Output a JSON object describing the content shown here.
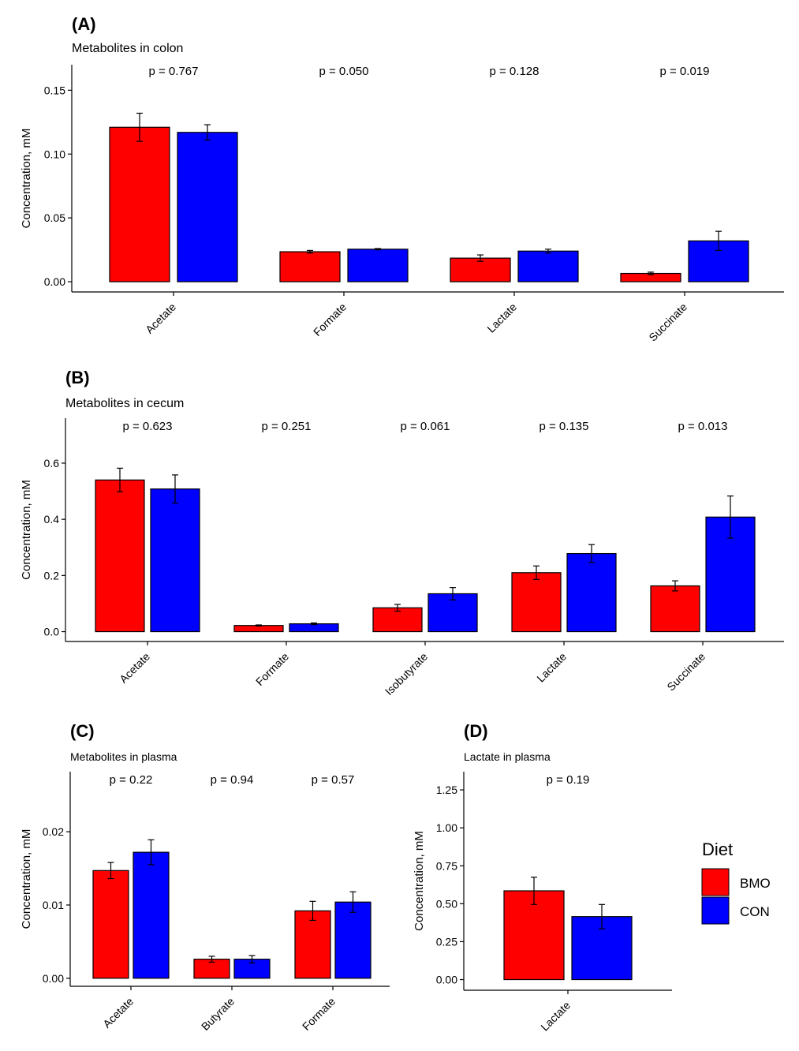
{
  "legend": {
    "title": "Diet",
    "items": [
      {
        "label": "BMO",
        "color": "#ff0000"
      },
      {
        "label": "CON",
        "color": "#0000ff"
      }
    ]
  },
  "chart_data": [
    {
      "id": "A",
      "type": "bar",
      "panel_label": "(A)",
      "title": "Metabolites in colon",
      "ylabel": "Concentration, mM",
      "xlabel": "",
      "ylim": [
        -0.008,
        0.17
      ],
      "yticks": [
        0.0,
        0.05,
        0.1,
        0.15
      ],
      "ytick_labels": [
        "0.00",
        "0.05",
        "0.10",
        "0.15"
      ],
      "categories": [
        "Acetate",
        "Formate",
        "Lactate",
        "Succinate"
      ],
      "pvalues": [
        "p = 0.767",
        "p = 0.050",
        "p = 0.128",
        "p = 0.019"
      ],
      "series": [
        {
          "name": "BMO",
          "color": "#ff0000",
          "values": [
            0.121,
            0.0235,
            0.0185,
            0.0065
          ],
          "errors": [
            0.011,
            0.001,
            0.0025,
            0.001
          ]
        },
        {
          "name": "CON",
          "color": "#0000ff",
          "values": [
            0.117,
            0.0255,
            0.024,
            0.032
          ],
          "errors": [
            0.006,
            0.0005,
            0.0015,
            0.0075
          ]
        }
      ]
    },
    {
      "id": "B",
      "type": "bar",
      "panel_label": "(B)",
      "title": "Metabolites in cecum",
      "ylabel": "Concentration, mM",
      "xlabel": "",
      "ylim": [
        -0.035,
        0.76
      ],
      "yticks": [
        0.0,
        0.2,
        0.4,
        0.6
      ],
      "ytick_labels": [
        "0.0",
        "0.2",
        "0.4",
        "0.6"
      ],
      "categories": [
        "Acetate",
        "Formate",
        "Isobutyrate",
        "Lactate",
        "Succinate"
      ],
      "pvalues": [
        "p = 0.623",
        "p = 0.251",
        "p = 0.061",
        "p = 0.135",
        "p = 0.013"
      ],
      "series": [
        {
          "name": "BMO",
          "color": "#ff0000",
          "values": [
            0.54,
            0.022,
            0.085,
            0.21,
            0.163
          ],
          "errors": [
            0.042,
            0.002,
            0.012,
            0.024,
            0.018
          ]
        },
        {
          "name": "CON",
          "color": "#0000ff",
          "values": [
            0.508,
            0.028,
            0.135,
            0.278,
            0.408
          ],
          "errors": [
            0.05,
            0.003,
            0.022,
            0.032,
            0.075
          ]
        }
      ]
    },
    {
      "id": "C",
      "type": "bar",
      "panel_label": "(C)",
      "title": "Metabolites in plasma",
      "ylabel": "Concentration, mM",
      "xlabel": "",
      "ylim": [
        -0.0011,
        0.0282
      ],
      "yticks": [
        0.0,
        0.01,
        0.02
      ],
      "ytick_labels": [
        "0.00",
        "0.01",
        "0.02"
      ],
      "categories": [
        "Acetate",
        "Butyrate",
        "Formate"
      ],
      "pvalues": [
        "p = 0.22",
        "p = 0.94",
        "p = 0.57"
      ],
      "series": [
        {
          "name": "BMO",
          "color": "#ff0000",
          "values": [
            0.0147,
            0.0026,
            0.0092
          ],
          "errors": [
            0.0011,
            0.0004,
            0.0013
          ]
        },
        {
          "name": "CON",
          "color": "#0000ff",
          "values": [
            0.0172,
            0.0026,
            0.0104
          ],
          "errors": [
            0.0017,
            0.0005,
            0.0014
          ]
        }
      ]
    },
    {
      "id": "D",
      "type": "bar",
      "panel_label": "(D)",
      "title": "Lactate in plasma",
      "ylabel": "Concentration, mM",
      "xlabel": "",
      "ylim": [
        -0.07,
        1.37
      ],
      "yticks": [
        0.0,
        0.25,
        0.5,
        0.75,
        1.0,
        1.25
      ],
      "ytick_labels": [
        "0.00",
        "0.25",
        "0.50",
        "0.75",
        "1.00",
        "1.25"
      ],
      "categories": [
        "Lactate"
      ],
      "pvalues": [
        "p = 0.19"
      ],
      "series": [
        {
          "name": "BMO",
          "color": "#ff0000",
          "values": [
            0.585
          ],
          "errors": [
            0.09
          ]
        },
        {
          "name": "CON",
          "color": "#0000ff",
          "values": [
            0.415
          ],
          "errors": [
            0.08
          ]
        }
      ]
    }
  ]
}
